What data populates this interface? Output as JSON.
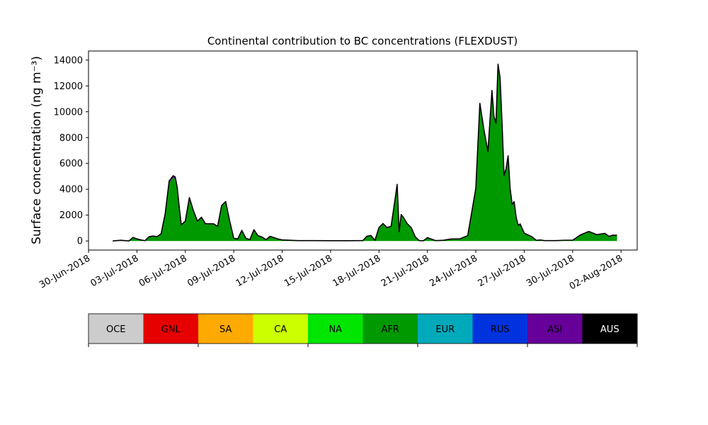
{
  "chart_data": {
    "type": "area",
    "stacked": true,
    "title": "Continental contribution to BC concentrations (FLEXDUST)",
    "ylabel": "Surface concentration (ng m⁻³)",
    "xlabel": "",
    "x_range": [
      "2018-06-30",
      "2018-08-03"
    ],
    "y_range": [
      -700,
      14700
    ],
    "y_ticks": [
      0,
      2000,
      4000,
      6000,
      8000,
      10000,
      12000,
      14000
    ],
    "x_ticks": [
      {
        "date": "2018-06-30",
        "label": "30-Jun-2018"
      },
      {
        "date": "2018-07-03",
        "label": "03-Jul-2018"
      },
      {
        "date": "2018-07-06",
        "label": "06-Jul-2018"
      },
      {
        "date": "2018-07-09",
        "label": "09-Jul-2018"
      },
      {
        "date": "2018-07-12",
        "label": "12-Jul-2018"
      },
      {
        "date": "2018-07-15",
        "label": "15-Jul-2018"
      },
      {
        "date": "2018-07-18",
        "label": "18-Jul-2018"
      },
      {
        "date": "2018-07-21",
        "label": "21-Jul-2018"
      },
      {
        "date": "2018-07-24",
        "label": "24-Jul-2018"
      },
      {
        "date": "2018-07-27",
        "label": "27-Jul-2018"
      },
      {
        "date": "2018-07-30",
        "label": "30-Jul-2018"
      },
      {
        "date": "2018-08-02",
        "label": "02-Aug-2018"
      }
    ],
    "legend": {
      "placement": "bottom",
      "style": "colorbar",
      "categories": [
        {
          "label": "OCE",
          "color": "#cccccc"
        },
        {
          "label": "GNL",
          "color": "#e60000"
        },
        {
          "label": "SA",
          "color": "#ffaa00"
        },
        {
          "label": "CA",
          "color": "#ccff00"
        },
        {
          "label": "NA",
          "color": "#00e600"
        },
        {
          "label": "AFR",
          "color": "#009900"
        },
        {
          "label": "EUR",
          "color": "#00aabb"
        },
        {
          "label": "RUS",
          "color": "#0033dd"
        },
        {
          "label": "ASI",
          "color": "#660099"
        },
        {
          "label": "AUS",
          "color": "#000000"
        }
      ]
    },
    "x": [
      "2018-07-01 12:00",
      "2018-07-02 00:00",
      "2018-07-02 12:00",
      "2018-07-02 18:00",
      "2018-07-03 00:00",
      "2018-07-03 06:00",
      "2018-07-03 12:00",
      "2018-07-03 18:00",
      "2018-07-04 00:00",
      "2018-07-04 06:00",
      "2018-07-04 12:00",
      "2018-07-04 18:00",
      "2018-07-05 00:00",
      "2018-07-05 06:00",
      "2018-07-05 09:00",
      "2018-07-05 12:00",
      "2018-07-05 15:00",
      "2018-07-05 18:00",
      "2018-07-06 00:00",
      "2018-07-06 06:00",
      "2018-07-06 12:00",
      "2018-07-06 18:00",
      "2018-07-07 00:00",
      "2018-07-07 06:00",
      "2018-07-07 12:00",
      "2018-07-07 18:00",
      "2018-07-08 00:00",
      "2018-07-08 06:00",
      "2018-07-08 12:00",
      "2018-07-08 18:00",
      "2018-07-09 00:00",
      "2018-07-09 06:00",
      "2018-07-09 12:00",
      "2018-07-09 18:00",
      "2018-07-10 00:00",
      "2018-07-10 06:00",
      "2018-07-10 12:00",
      "2018-07-10 18:00",
      "2018-07-11 00:00",
      "2018-07-11 06:00",
      "2018-07-11 12:00",
      "2018-07-11 18:00",
      "2018-07-12 00:00",
      "2018-07-12 12:00",
      "2018-07-13 00:00",
      "2018-07-14 00:00",
      "2018-07-15 00:00",
      "2018-07-16 00:00",
      "2018-07-17 00:00",
      "2018-07-17 06:00",
      "2018-07-17 12:00",
      "2018-07-17 18:00",
      "2018-07-18 00:00",
      "2018-07-18 06:00",
      "2018-07-18 12:00",
      "2018-07-18 18:00",
      "2018-07-19 00:00",
      "2018-07-19 03:00",
      "2018-07-19 06:00",
      "2018-07-19 09:00",
      "2018-07-19 12:00",
      "2018-07-19 18:00",
      "2018-07-20 00:00",
      "2018-07-20 06:00",
      "2018-07-20 12:00",
      "2018-07-20 18:00",
      "2018-07-21 00:00",
      "2018-07-21 12:00",
      "2018-07-22 00:00",
      "2018-07-22 06:00",
      "2018-07-22 12:00",
      "2018-07-23 00:00",
      "2018-07-23 12:00",
      "2018-07-24 00:00",
      "2018-07-24 06:00",
      "2018-07-24 12:00",
      "2018-07-24 18:00",
      "2018-07-25 00:00",
      "2018-07-25 03:00",
      "2018-07-25 06:00",
      "2018-07-25 09:00",
      "2018-07-25 12:00",
      "2018-07-25 15:00",
      "2018-07-25 18:00",
      "2018-07-25 21:00",
      "2018-07-26 00:00",
      "2018-07-26 03:00",
      "2018-07-26 06:00",
      "2018-07-26 09:00",
      "2018-07-26 12:00",
      "2018-07-26 15:00",
      "2018-07-26 18:00",
      "2018-07-27 00:00",
      "2018-07-27 06:00",
      "2018-07-27 12:00",
      "2018-07-27 18:00",
      "2018-07-28 00:00",
      "2018-07-28 06:00",
      "2018-07-28 12:00",
      "2018-07-28 18:00",
      "2018-07-29 00:00",
      "2018-07-29 12:00",
      "2018-07-30 00:00",
      "2018-07-30 12:00",
      "2018-07-31 00:00",
      "2018-07-31 12:00",
      "2018-08-01 00:00",
      "2018-08-01 06:00",
      "2018-08-01 12:00",
      "2018-08-01 18:00"
    ],
    "series": [
      {
        "color": "#009900",
        "values": [
          0,
          50,
          0,
          250,
          150,
          80,
          20,
          300,
          350,
          300,
          500,
          2000,
          4500,
          4900,
          4800,
          4000,
          2500,
          1200,
          1500,
          3300,
          2300,
          1500,
          1800,
          1300,
          1300,
          1300,
          1100,
          2700,
          3000,
          1500,
          200,
          150,
          800,
          200,
          100,
          850,
          400,
          300,
          100,
          350,
          250,
          150,
          80,
          50,
          30,
          30,
          20,
          20,
          30,
          350,
          400,
          50,
          1000,
          1300,
          1000,
          1100,
          3200,
          4300,
          700,
          2000,
          1800,
          1300,
          1000,
          300,
          30,
          20,
          250,
          30,
          50,
          100,
          150,
          150,
          400,
          4000,
          10500,
          8500,
          6800,
          11500,
          9500,
          9000,
          13500,
          12500,
          9000,
          5000,
          5500,
          6500,
          4000,
          2800,
          3000,
          1800,
          1200,
          1300,
          600,
          450,
          300,
          50,
          80,
          30,
          30,
          30,
          30,
          50,
          50,
          450,
          700,
          450,
          550,
          300,
          400,
          400
        ]
      },
      {
        "color": "#660099",
        "values": [
          0,
          5,
          0,
          20,
          10,
          5,
          0,
          30,
          40,
          40,
          60,
          100,
          150,
          150,
          150,
          120,
          80,
          40,
          40,
          60,
          50,
          40,
          40,
          30,
          30,
          30,
          30,
          50,
          50,
          40,
          10,
          10,
          20,
          10,
          5,
          20,
          10,
          10,
          5,
          10,
          10,
          5,
          5,
          5,
          0,
          0,
          0,
          0,
          0,
          15,
          20,
          5,
          40,
          50,
          40,
          40,
          60,
          80,
          30,
          50,
          50,
          40,
          30,
          15,
          0,
          0,
          10,
          0,
          5,
          10,
          10,
          10,
          20,
          80,
          150,
          130,
          110,
          150,
          130,
          120,
          180,
          160,
          120,
          80,
          80,
          90,
          60,
          40,
          40,
          30,
          20,
          20,
          10,
          10,
          10,
          0,
          0,
          0,
          0,
          0,
          0,
          10,
          10,
          30,
          40,
          40,
          40,
          60,
          50,
          50
        ]
      }
    ]
  }
}
